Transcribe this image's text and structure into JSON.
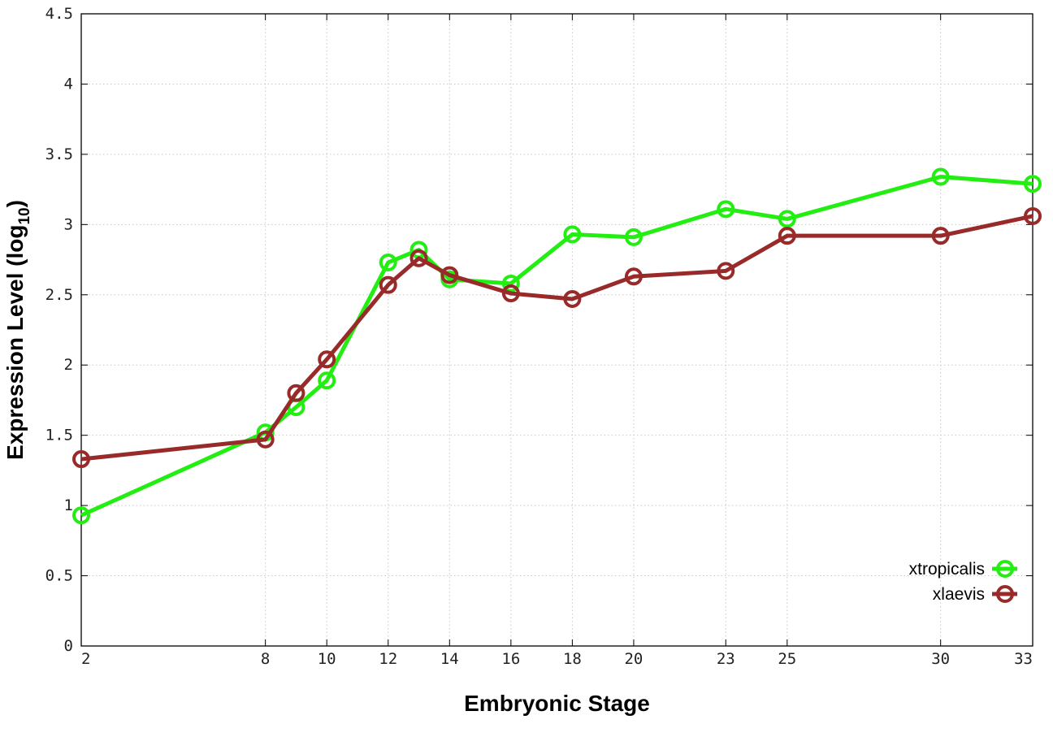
{
  "chart_data": {
    "type": "line",
    "xlabel": "Embryonic Stage",
    "ylabel_main": "Expression Level (log",
    "ylabel_sub": "10",
    "ylabel_close": ")",
    "x": [
      2,
      8,
      9,
      10,
      12,
      13,
      14,
      16,
      18,
      20,
      23,
      25,
      30,
      33
    ],
    "x_tick_values": [
      2,
      8,
      10,
      12,
      14,
      16,
      18,
      20,
      23,
      25,
      30,
      33
    ],
    "x_tick_labels": [
      "2",
      "8",
      "10",
      "12",
      "14",
      "16",
      "18",
      "20",
      "23",
      "25",
      "30",
      "33"
    ],
    "xlim": [
      2,
      33
    ],
    "ylim": [
      0,
      4.5
    ],
    "y_tick_values": [
      0,
      0.5,
      1,
      1.5,
      2,
      2.5,
      3,
      3.5,
      4,
      4.5
    ],
    "y_tick_labels": [
      "0",
      "0.5",
      "1",
      "1.5",
      "2",
      "2.5",
      "3",
      "3.5",
      "4",
      "4.5"
    ],
    "grid": true,
    "legend_position": "bottom-right",
    "series": [
      {
        "name": "xtropicalis",
        "color": "#22ee11",
        "values": [
          0.93,
          1.52,
          1.7,
          1.89,
          2.73,
          2.82,
          2.61,
          2.58,
          2.93,
          2.91,
          3.11,
          3.04,
          3.34,
          3.29
        ]
      },
      {
        "name": "xlaevis",
        "color": "#992a2a",
        "values": [
          1.33,
          1.47,
          1.8,
          2.04,
          2.57,
          2.76,
          2.64,
          2.51,
          2.47,
          2.63,
          2.67,
          2.92,
          2.92,
          3.06
        ]
      }
    ]
  }
}
